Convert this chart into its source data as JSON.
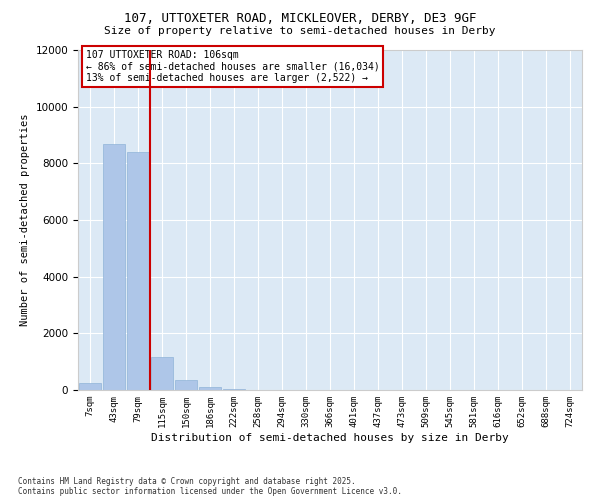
{
  "title_line1": "107, UTTOXETER ROAD, MICKLEOVER, DERBY, DE3 9GF",
  "title_line2": "Size of property relative to semi-detached houses in Derby",
  "xlabel": "Distribution of semi-detached houses by size in Derby",
  "ylabel": "Number of semi-detached properties",
  "footnote1": "Contains HM Land Registry data © Crown copyright and database right 2025.",
  "footnote2": "Contains public sector information licensed under the Open Government Licence v3.0.",
  "annotation_line1": "107 UTTOXETER ROAD: 106sqm",
  "annotation_line2": "← 86% of semi-detached houses are smaller (16,034)",
  "annotation_line3": "13% of semi-detached houses are larger (2,522) →",
  "bar_color": "#aec6e8",
  "bar_edge_color": "#90b4d8",
  "vline_color": "#cc0000",
  "background_color": "#dce9f5",
  "categories": [
    "7sqm",
    "43sqm",
    "79sqm",
    "115sqm",
    "150sqm",
    "186sqm",
    "222sqm",
    "258sqm",
    "294sqm",
    "330sqm",
    "366sqm",
    "401sqm",
    "437sqm",
    "473sqm",
    "509sqm",
    "545sqm",
    "581sqm",
    "616sqm",
    "652sqm",
    "688sqm",
    "724sqm"
  ],
  "values": [
    230,
    8700,
    8400,
    1150,
    370,
    100,
    40,
    10,
    4,
    1,
    0,
    0,
    0,
    0,
    0,
    0,
    0,
    0,
    0,
    0,
    0
  ],
  "vline_x": 2.5,
  "ylim": [
    0,
    12000
  ],
  "yticks": [
    0,
    2000,
    4000,
    6000,
    8000,
    10000,
    12000
  ]
}
